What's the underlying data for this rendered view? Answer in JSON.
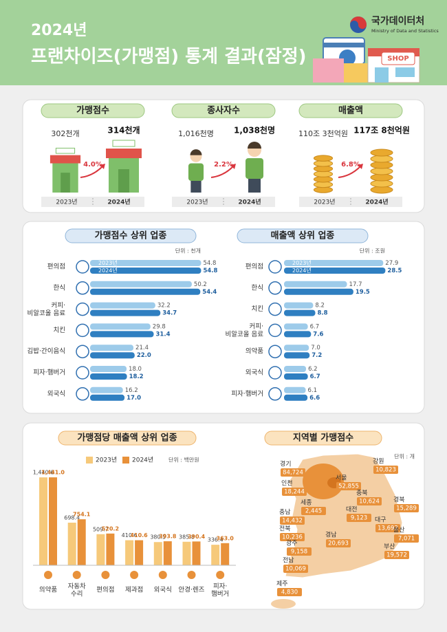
{
  "header": {
    "year": "2024년",
    "title": "프랜차이즈(가맹점) 통계 결과(잠정)",
    "agency": "국가데이터처",
    "agency_en": "Ministry of Data and Statistics",
    "shop_sign": "SHOP"
  },
  "summary": {
    "years": [
      "2023년",
      "2024년"
    ],
    "store_sign": "SHOP",
    "items": [
      {
        "title": "가맹점수",
        "before": "302천개",
        "after": "314천개",
        "growth": "4.0%"
      },
      {
        "title": "종사자수",
        "before": "1,016천명",
        "after": "1,038천명",
        "growth": "2.2%"
      },
      {
        "title": "매출액",
        "before": "110조 3천억원",
        "after": "117조 8천억원",
        "growth": "6.8%"
      }
    ]
  },
  "chart_data": [
    {
      "type": "hbar",
      "title": "가맹점수 상위 업종",
      "unit": "단위 : 천개",
      "categories": [
        "편의점",
        "한식",
        "커피·\n비알코올 음료",
        "치킨",
        "김밥·간이음식",
        "피자·햄버거",
        "외국식"
      ],
      "series": [
        {
          "name": "2023년",
          "color": "#9dcbea",
          "values": [
            54.8,
            50.2,
            32.2,
            29.8,
            21.4,
            18.0,
            16.2
          ],
          "value_labels": [
            "54.8",
            "50.2",
            "32.2",
            "29.8",
            "21.4",
            "18.0",
            "16.2"
          ]
        },
        {
          "name": "2024년",
          "color": "#2f7fc1",
          "values": [
            54.8,
            54.4,
            34.7,
            31.4,
            22.0,
            18.2,
            17.0
          ],
          "value_labels": [
            "54.8",
            "54.4",
            "34.7",
            "31.4",
            "22.0",
            "18.2",
            "17.0"
          ]
        }
      ],
      "xlim": [
        0,
        56
      ]
    },
    {
      "type": "hbar",
      "title": "매출액 상위 업종",
      "unit": "단위 : 조원",
      "categories": [
        "편의점",
        "한식",
        "치킨",
        "커피·\n비알코올 음료",
        "의약품",
        "외국식",
        "피자·햄버거"
      ],
      "series": [
        {
          "name": "2023년",
          "color": "#9dcbea",
          "values": [
            27.9,
            17.7,
            8.2,
            6.7,
            7.0,
            6.2,
            6.1
          ],
          "value_labels": [
            "27.9",
            "17.7",
            "8.2",
            "6.7",
            "7.0",
            "6.2",
            "6.1"
          ]
        },
        {
          "name": "2024년",
          "color": "#2f7fc1",
          "values": [
            28.5,
            19.5,
            8.8,
            7.6,
            7.2,
            6.7,
            6.6
          ],
          "value_labels": [
            "28.5",
            "19.5",
            "8.8",
            "7.6",
            "7.2",
            "6.7",
            "6.6"
          ]
        }
      ],
      "xlim": [
        0,
        29
      ]
    },
    {
      "type": "bar",
      "title": "가맹점당 매출액 상위 업종",
      "unit": "단위 : 백만원",
      "categories": [
        "의약품",
        "자동차\n수리",
        "편의점",
        "제과점",
        "외국식",
        "안경·렌즈",
        "피자·\n햄버거"
      ],
      "series": [
        {
          "name": "2023년",
          "color": "#f6c97a",
          "values": [
            1440.6,
            698.4,
            509.7,
            410.6,
            380.5,
            385.8,
            336.4
          ],
          "value_labels": [
            "1,440.6",
            "698.4",
            "509.7",
            "410.6",
            "380.5",
            "385.8",
            "336.4"
          ]
        },
        {
          "name": "2024년",
          "color": "#e8913a",
          "values": [
            1441.0,
            754.1,
            520.2,
            410.6,
            393.8,
            390.4,
            363.0
          ],
          "value_labels": [
            "1,441.0",
            "754.1",
            "520.2",
            "410.6",
            "393.8",
            "390.4",
            "363.0"
          ]
        }
      ],
      "ylim": [
        0,
        1600
      ]
    }
  ],
  "regional": {
    "title": "지역별 가맹점수",
    "unit": "단위 : 개",
    "regions": [
      {
        "name": "경기",
        "value": "84,724"
      },
      {
        "name": "강원",
        "value": "10,823"
      },
      {
        "name": "서울",
        "value": "52,855"
      },
      {
        "name": "인천",
        "value": "18,244"
      },
      {
        "name": "충북",
        "value": "10,624"
      },
      {
        "name": "경북",
        "value": "15,289"
      },
      {
        "name": "세종",
        "value": "2,445"
      },
      {
        "name": "대전",
        "value": "9,123"
      },
      {
        "name": "충남",
        "value": "14,432"
      },
      {
        "name": "대구",
        "value": "13,692"
      },
      {
        "name": "울산",
        "value": "7,071"
      },
      {
        "name": "전북",
        "value": "10,236"
      },
      {
        "name": "경남",
        "value": "20,693"
      },
      {
        "name": "광주",
        "value": "9,158"
      },
      {
        "name": "부산",
        "value": "19,572"
      },
      {
        "name": "전남",
        "value": "10,069"
      },
      {
        "name": "제주",
        "value": "4,830"
      }
    ]
  }
}
